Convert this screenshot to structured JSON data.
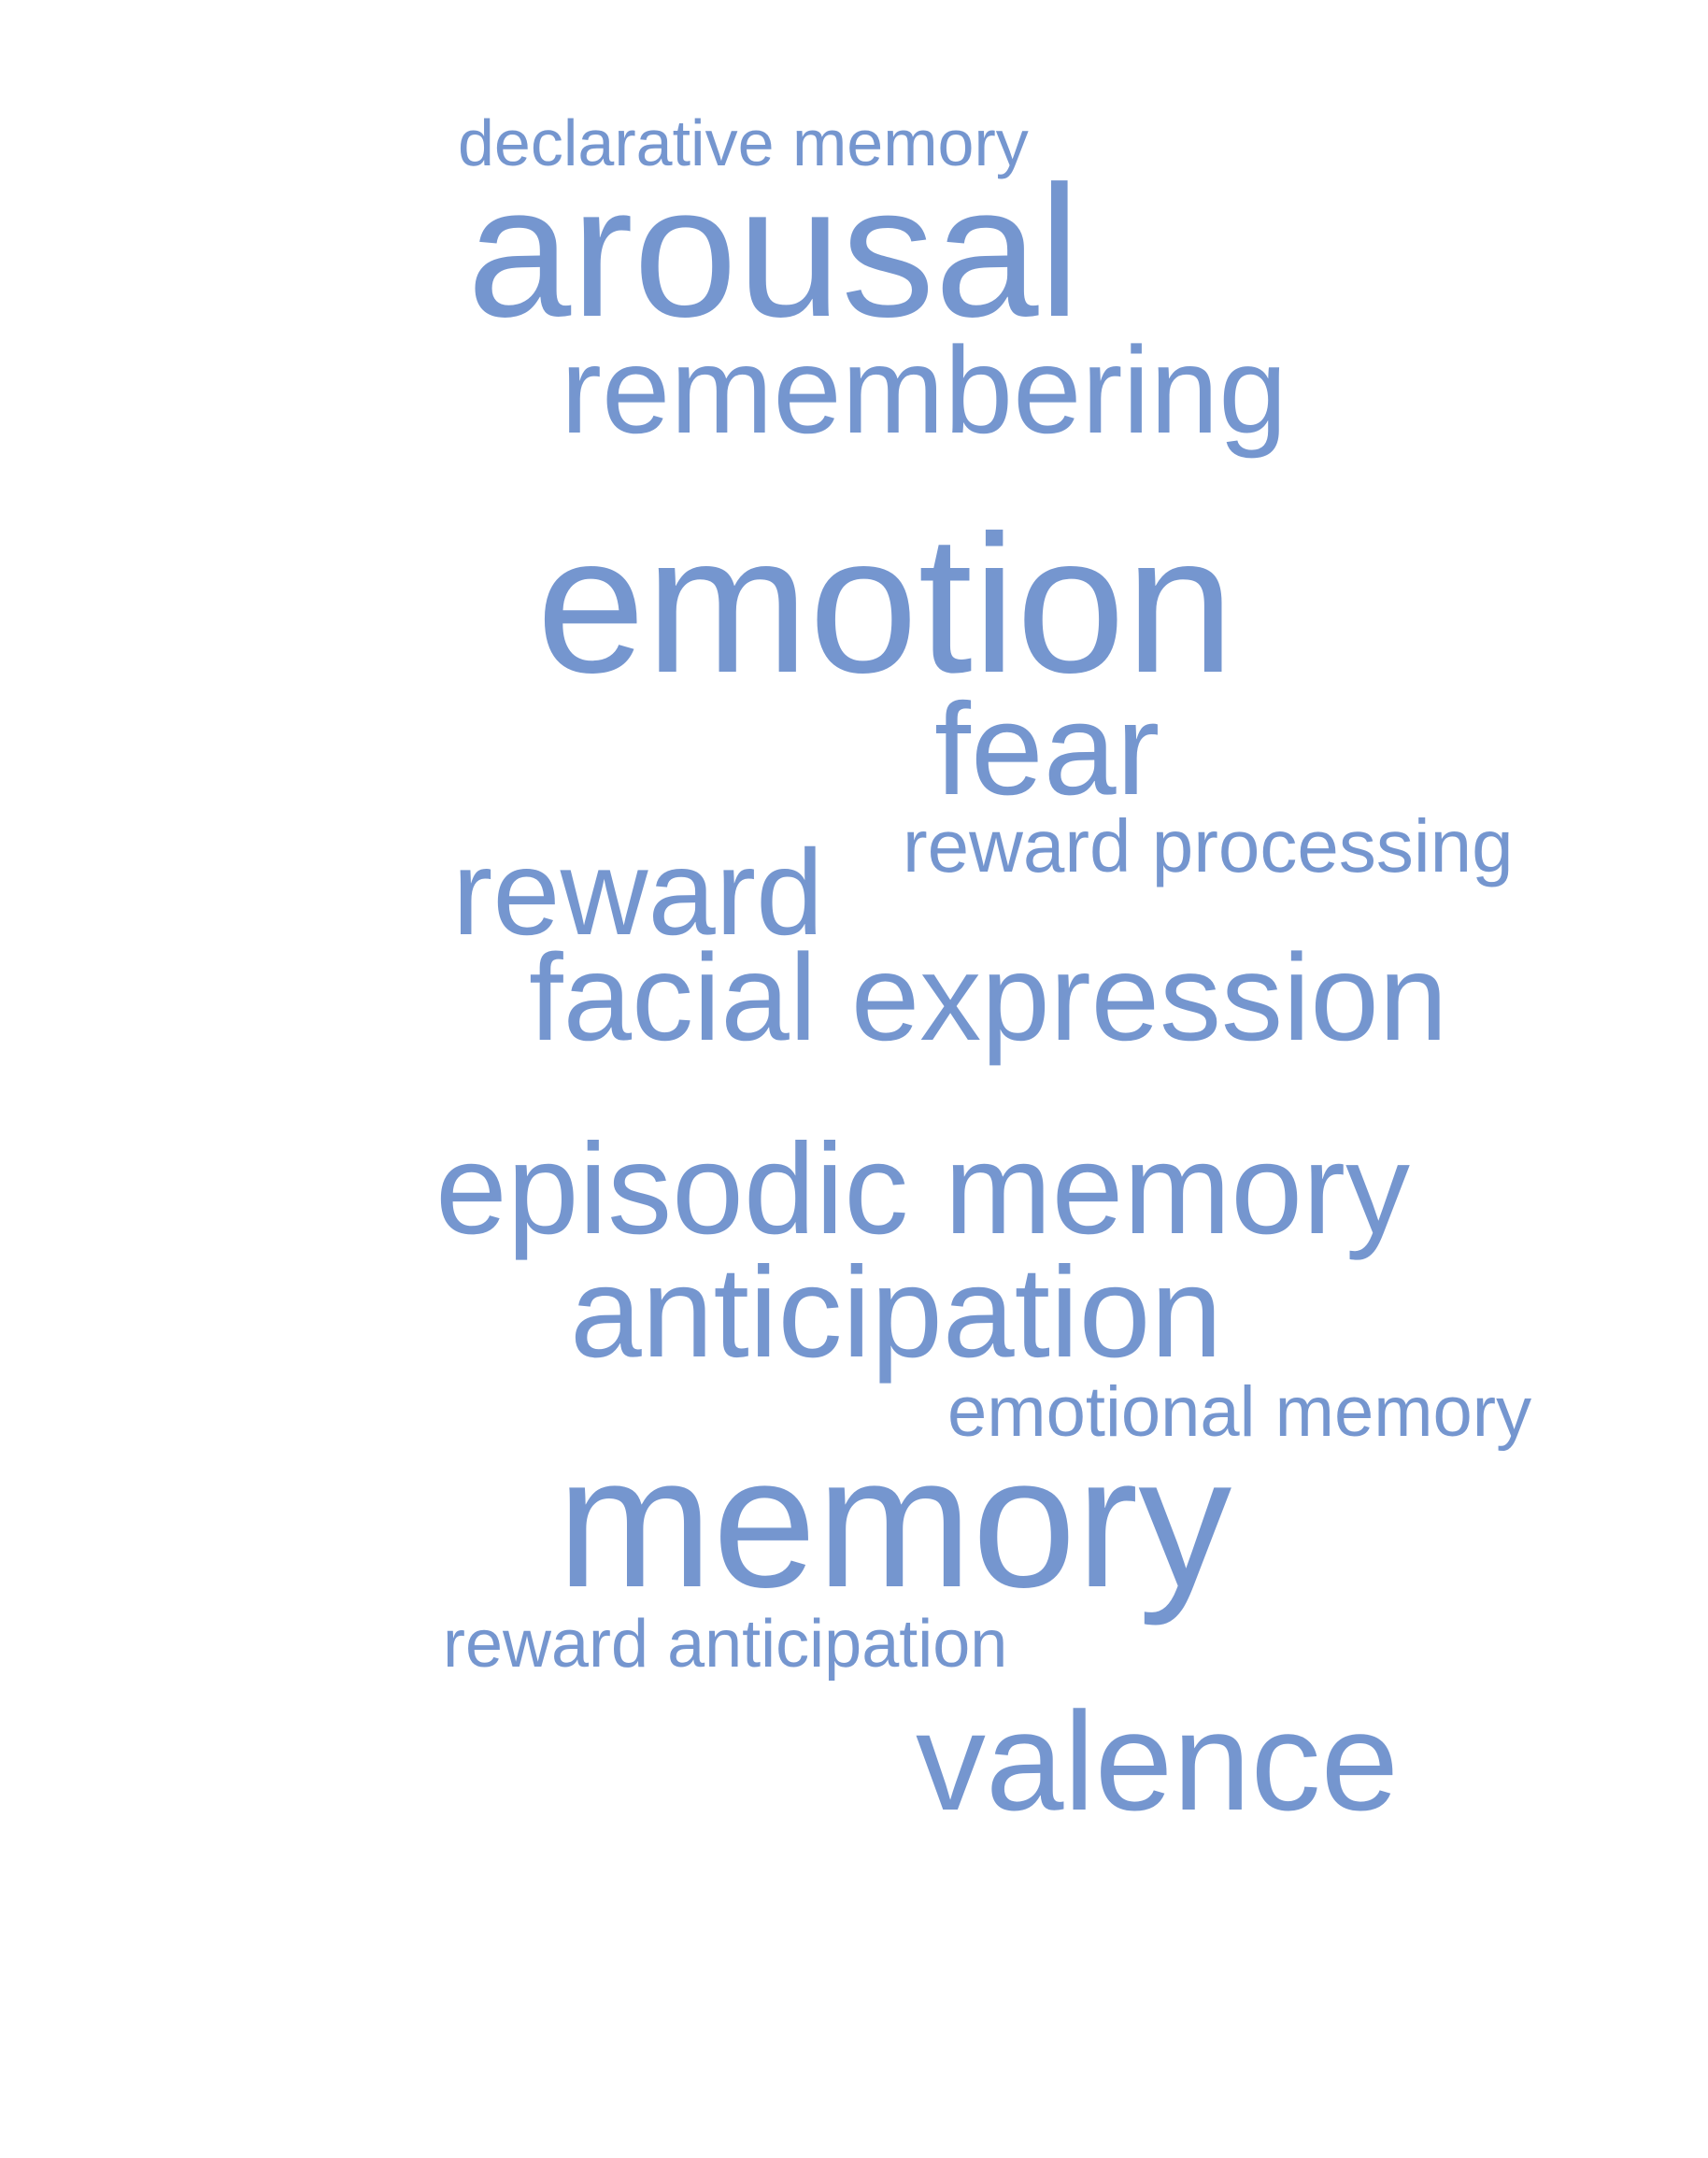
{
  "colors": {
    "background": "#ffffff",
    "word": "#7596cf"
  },
  "words": {
    "declarative_memory": "declarative memory",
    "arousal": "arousal",
    "remembering": "remembering",
    "emotion": "emotion",
    "fear": "fear",
    "reward_processing": "reward processing",
    "reward": "reward",
    "facial_expression": "facial expression",
    "episodic_memory": "episodic memory",
    "anticipation": "anticipation",
    "emotional_memory": "emotional memory",
    "memory": "memory",
    "reward_anticipation": "reward anticipation",
    "valence": "valence"
  }
}
